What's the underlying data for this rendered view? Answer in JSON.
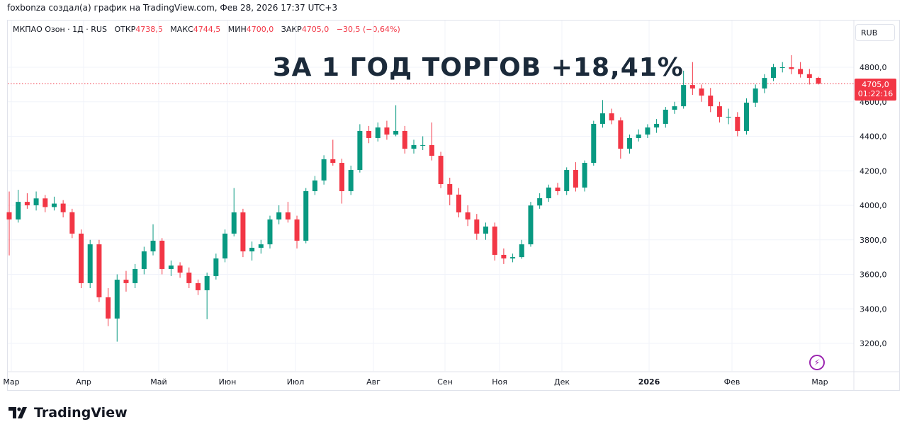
{
  "caption": "foxbonza создал(а) график на TradingView.com, Фев 28, 2026 17:37 UTC+3",
  "legend": {
    "symbol": "МКПАО Озон · 1Д · RUS",
    "open_label": "ОТКР",
    "open": "4738,5",
    "high_label": "МАКС",
    "high": "4744,5",
    "low_label": "МИН",
    "low": "4700,0",
    "close_label": "ЗАКР",
    "close": "4705,0",
    "change": "−30,5 (−0,64%)"
  },
  "currency": "RUB",
  "headline": "ЗА 1 ГОД ТОРГОВ +18,41%",
  "price_tag": {
    "price": "4705,0",
    "countdown": "01:22:16"
  },
  "footer_brand": "TradingView",
  "colors": {
    "up": "#089981",
    "down": "#f23645",
    "headline": "#1b2a3a",
    "grid": "#f0f3fa"
  },
  "icons": {
    "bolt": "lightning-icon",
    "logo": "tradingview-logo-icon"
  },
  "chart_data": {
    "type": "candlestick",
    "ylim": [
      3100,
      4900
    ],
    "y_ticks": [
      "3200,0",
      "3400,0",
      "3600,0",
      "3800,0",
      "4000,0",
      "4200,0",
      "4400,0",
      "4600,0",
      "4800,0"
    ],
    "y_tick_values": [
      3200,
      3400,
      3600,
      3800,
      4000,
      4200,
      4400,
      4600,
      4800
    ],
    "x_ticks": [
      {
        "label": "Мар",
        "bold": false
      },
      {
        "label": "Апр",
        "bold": false
      },
      {
        "label": "Май",
        "bold": false
      },
      {
        "label": "Июн",
        "bold": false
      },
      {
        "label": "Июл",
        "bold": false
      },
      {
        "label": "Авг",
        "bold": false
      },
      {
        "label": "Сен",
        "bold": false
      },
      {
        "label": "Ноя",
        "bold": false
      },
      {
        "label": "Дек",
        "bold": false
      },
      {
        "label": "2026",
        "bold": true
      },
      {
        "label": "Фев",
        "bold": false
      },
      {
        "label": "Мар",
        "bold": false
      }
    ],
    "last_price": 4705,
    "ohlc": [
      [
        3960,
        4080,
        3710,
        3918
      ],
      [
        3918,
        4090,
        3900,
        4020
      ],
      [
        4020,
        4070,
        3980,
        4000
      ],
      [
        4000,
        4080,
        3970,
        4040
      ],
      [
        4040,
        4060,
        3960,
        3990
      ],
      [
        3990,
        4050,
        3970,
        4010
      ],
      [
        4010,
        4030,
        3930,
        3960
      ],
      [
        3960,
        3980,
        3810,
        3836
      ],
      [
        3836,
        3860,
        3520,
        3549
      ],
      [
        3549,
        3800,
        3520,
        3774
      ],
      [
        3774,
        3800,
        3440,
        3467
      ],
      [
        3467,
        3520,
        3300,
        3344
      ],
      [
        3344,
        3600,
        3210,
        3569
      ],
      [
        3569,
        3620,
        3500,
        3549
      ],
      [
        3549,
        3660,
        3520,
        3631
      ],
      [
        3631,
        3760,
        3600,
        3733
      ],
      [
        3733,
        3890,
        3710,
        3795
      ],
      [
        3795,
        3810,
        3600,
        3631
      ],
      [
        3631,
        3680,
        3590,
        3651
      ],
      [
        3651,
        3670,
        3580,
        3610
      ],
      [
        3610,
        3640,
        3520,
        3549
      ],
      [
        3549,
        3570,
        3480,
        3508
      ],
      [
        3508,
        3610,
        3340,
        3590
      ],
      [
        3590,
        3720,
        3570,
        3692
      ],
      [
        3692,
        3860,
        3670,
        3836
      ],
      [
        3836,
        4100,
        3820,
        3959
      ],
      [
        3959,
        3980,
        3700,
        3733
      ],
      [
        3733,
        3790,
        3680,
        3754
      ],
      [
        3754,
        3800,
        3720,
        3774
      ],
      [
        3774,
        3940,
        3750,
        3918
      ],
      [
        3918,
        4000,
        3890,
        3959
      ],
      [
        3959,
        4020,
        3900,
        3918
      ],
      [
        3918,
        3940,
        3750,
        3795
      ],
      [
        3795,
        4100,
        3780,
        4082
      ],
      [
        4082,
        4170,
        4060,
        4144
      ],
      [
        4144,
        4290,
        4120,
        4267
      ],
      [
        4267,
        4380,
        4230,
        4246
      ],
      [
        4246,
        4270,
        4010,
        4082
      ],
      [
        4082,
        4230,
        4060,
        4205
      ],
      [
        4205,
        4470,
        4190,
        4431
      ],
      [
        4431,
        4460,
        4360,
        4390
      ],
      [
        4390,
        4480,
        4370,
        4451
      ],
      [
        4451,
        4490,
        4380,
        4410
      ],
      [
        4410,
        4580,
        4400,
        4431
      ],
      [
        4431,
        4460,
        4300,
        4328
      ],
      [
        4328,
        4380,
        4300,
        4349
      ],
      [
        4349,
        4400,
        4320,
        4349
      ],
      [
        4349,
        4480,
        4260,
        4287
      ],
      [
        4287,
        4310,
        4100,
        4123
      ],
      [
        4123,
        4160,
        4000,
        4062
      ],
      [
        4062,
        4100,
        3930,
        3959
      ],
      [
        3959,
        4000,
        3880,
        3918
      ],
      [
        3918,
        3950,
        3800,
        3836
      ],
      [
        3836,
        3900,
        3800,
        3877
      ],
      [
        3877,
        3900,
        3680,
        3713
      ],
      [
        3713,
        3750,
        3660,
        3692
      ],
      [
        3692,
        3720,
        3670,
        3700
      ],
      [
        3700,
        3800,
        3690,
        3774
      ],
      [
        3774,
        4020,
        3760,
        3999
      ],
      [
        3999,
        4070,
        3980,
        4041
      ],
      [
        4041,
        4120,
        4020,
        4103
      ],
      [
        4103,
        4130,
        4060,
        4082
      ],
      [
        4082,
        4220,
        4060,
        4205
      ],
      [
        4205,
        4250,
        4080,
        4103
      ],
      [
        4103,
        4260,
        4080,
        4246
      ],
      [
        4246,
        4490,
        4230,
        4472
      ],
      [
        4472,
        4610,
        4450,
        4533
      ],
      [
        4533,
        4560,
        4470,
        4492
      ],
      [
        4492,
        4510,
        4270,
        4328
      ],
      [
        4328,
        4410,
        4300,
        4390
      ],
      [
        4390,
        4440,
        4370,
        4410
      ],
      [
        4410,
        4470,
        4390,
        4451
      ],
      [
        4451,
        4500,
        4420,
        4472
      ],
      [
        4472,
        4570,
        4450,
        4554
      ],
      [
        4554,
        4600,
        4530,
        4574
      ],
      [
        4574,
        4780,
        4560,
        4697
      ],
      [
        4697,
        4830,
        4640,
        4677
      ],
      [
        4677,
        4700,
        4600,
        4636
      ],
      [
        4636,
        4680,
        4540,
        4574
      ],
      [
        4574,
        4600,
        4480,
        4513
      ],
      [
        4513,
        4560,
        4470,
        4513
      ],
      [
        4513,
        4540,
        4400,
        4431
      ],
      [
        4431,
        4620,
        4410,
        4595
      ],
      [
        4595,
        4700,
        4570,
        4677
      ],
      [
        4677,
        4760,
        4650,
        4738
      ],
      [
        4738,
        4820,
        4720,
        4800
      ],
      [
        4800,
        4830,
        4770,
        4800
      ],
      [
        4800,
        4870,
        4760,
        4790
      ],
      [
        4790,
        4830,
        4740,
        4760
      ],
      [
        4760,
        4790,
        4700,
        4738.5
      ],
      [
        4738.5,
        4744.5,
        4700,
        4705
      ]
    ]
  }
}
